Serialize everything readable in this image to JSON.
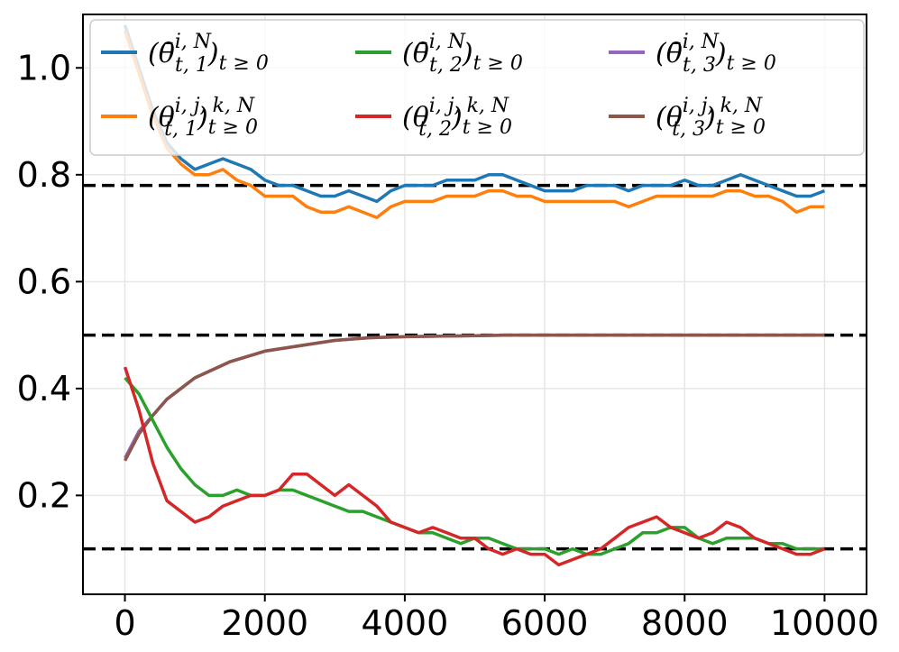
{
  "chart_data": {
    "type": "line",
    "title": "",
    "xlabel": "",
    "ylabel": "",
    "xlim": [
      -600,
      10600
    ],
    "ylim": [
      0.015,
      1.1
    ],
    "grid": true,
    "x_ticks": [
      0,
      2000,
      4000,
      6000,
      8000,
      10000
    ],
    "x_tick_labels": [
      "0",
      "2000",
      "4000",
      "6000",
      "8000",
      "10000"
    ],
    "y_ticks": [
      0.2,
      0.4,
      0.6,
      0.8,
      1.0
    ],
    "y_tick_labels": [
      "0.2",
      "0.4",
      "0.6",
      "0.8",
      "1.0"
    ],
    "reference_lines": [
      0.78,
      0.5,
      0.1
    ],
    "legend_position": "top",
    "legend_columns": 3,
    "series": [
      {
        "name": "theta_bar_t1",
        "label": "(θ̄ᵢ,ᴺ t,1)t≥0",
        "color": "#1f77b4",
        "x": [
          0,
          200,
          400,
          600,
          800,
          1000,
          1200,
          1400,
          1600,
          1800,
          2000,
          2200,
          2400,
          2600,
          2800,
          3000,
          3200,
          3400,
          3600,
          3800,
          4000,
          4200,
          4400,
          4600,
          4800,
          5000,
          5200,
          5400,
          5600,
          5800,
          6000,
          6200,
          6400,
          6600,
          6800,
          7000,
          7200,
          7400,
          7600,
          7800,
          8000,
          8200,
          8400,
          8600,
          8800,
          9000,
          9200,
          9400,
          9600,
          9800,
          10000
        ],
        "y": [
          1.08,
          1.0,
          0.92,
          0.86,
          0.83,
          0.81,
          0.82,
          0.83,
          0.82,
          0.81,
          0.79,
          0.78,
          0.78,
          0.77,
          0.76,
          0.76,
          0.77,
          0.76,
          0.75,
          0.77,
          0.78,
          0.78,
          0.78,
          0.79,
          0.79,
          0.79,
          0.8,
          0.8,
          0.79,
          0.78,
          0.77,
          0.77,
          0.77,
          0.78,
          0.78,
          0.78,
          0.77,
          0.78,
          0.78,
          0.78,
          0.79,
          0.78,
          0.78,
          0.79,
          0.8,
          0.79,
          0.78,
          0.77,
          0.76,
          0.76,
          0.77
        ]
      },
      {
        "name": "theta_ijk_t1",
        "label": "(θᵢ,ⱼ,ₖ,ᴺ t,1)t≥0",
        "color": "#ff7f0e",
        "x": [
          0,
          200,
          400,
          600,
          800,
          1000,
          1200,
          1400,
          1600,
          1800,
          2000,
          2200,
          2400,
          2600,
          2800,
          3000,
          3200,
          3400,
          3600,
          3800,
          4000,
          4200,
          4400,
          4600,
          4800,
          5000,
          5200,
          5400,
          5600,
          5800,
          6000,
          6200,
          6400,
          6600,
          6800,
          7000,
          7200,
          7400,
          7600,
          7800,
          8000,
          8200,
          8400,
          8600,
          8800,
          9000,
          9200,
          9400,
          9600,
          9800,
          10000
        ],
        "y": [
          1.07,
          0.99,
          0.91,
          0.85,
          0.82,
          0.8,
          0.8,
          0.81,
          0.79,
          0.78,
          0.76,
          0.76,
          0.76,
          0.74,
          0.73,
          0.73,
          0.74,
          0.73,
          0.72,
          0.74,
          0.75,
          0.75,
          0.75,
          0.76,
          0.76,
          0.76,
          0.77,
          0.77,
          0.76,
          0.76,
          0.75,
          0.75,
          0.75,
          0.75,
          0.75,
          0.75,
          0.74,
          0.75,
          0.76,
          0.76,
          0.76,
          0.76,
          0.76,
          0.77,
          0.77,
          0.76,
          0.76,
          0.75,
          0.73,
          0.74,
          0.74
        ]
      },
      {
        "name": "theta_bar_t2",
        "label": "(θ̄ᵢ,ᴺ t,2)t≥0",
        "color": "#2ca02c",
        "x": [
          0,
          200,
          400,
          600,
          800,
          1000,
          1200,
          1400,
          1600,
          1800,
          2000,
          2200,
          2400,
          2600,
          2800,
          3000,
          3200,
          3400,
          3600,
          3800,
          4000,
          4200,
          4400,
          4600,
          4800,
          5000,
          5200,
          5400,
          5600,
          5800,
          6000,
          6200,
          6400,
          6600,
          6800,
          7000,
          7200,
          7400,
          7600,
          7800,
          8000,
          8200,
          8400,
          8600,
          8800,
          9000,
          9200,
          9400,
          9600,
          9800,
          10000
        ],
        "y": [
          0.42,
          0.39,
          0.34,
          0.29,
          0.25,
          0.22,
          0.2,
          0.2,
          0.21,
          0.2,
          0.2,
          0.21,
          0.21,
          0.2,
          0.19,
          0.18,
          0.17,
          0.17,
          0.16,
          0.15,
          0.14,
          0.13,
          0.13,
          0.12,
          0.11,
          0.12,
          0.12,
          0.11,
          0.1,
          0.1,
          0.1,
          0.09,
          0.1,
          0.09,
          0.09,
          0.1,
          0.11,
          0.13,
          0.13,
          0.14,
          0.14,
          0.12,
          0.11,
          0.12,
          0.12,
          0.12,
          0.11,
          0.11,
          0.1,
          0.1,
          0.1
        ]
      },
      {
        "name": "theta_ijk_t2",
        "label": "(θᵢ,ⱼ,ₖ,ᴺ t,2)t≥0",
        "color": "#d62728",
        "x": [
          0,
          200,
          400,
          600,
          800,
          1000,
          1200,
          1400,
          1600,
          1800,
          2000,
          2200,
          2400,
          2600,
          2800,
          3000,
          3200,
          3400,
          3600,
          3800,
          4000,
          4200,
          4400,
          4600,
          4800,
          5000,
          5200,
          5400,
          5600,
          5800,
          6000,
          6200,
          6400,
          6600,
          6800,
          7000,
          7200,
          7400,
          7600,
          7800,
          8000,
          8200,
          8400,
          8600,
          8800,
          9000,
          9200,
          9400,
          9600,
          9800,
          10000
        ],
        "y": [
          0.44,
          0.36,
          0.26,
          0.19,
          0.17,
          0.15,
          0.16,
          0.18,
          0.19,
          0.2,
          0.2,
          0.21,
          0.24,
          0.24,
          0.22,
          0.2,
          0.22,
          0.2,
          0.18,
          0.15,
          0.14,
          0.13,
          0.14,
          0.13,
          0.12,
          0.12,
          0.1,
          0.09,
          0.1,
          0.09,
          0.09,
          0.07,
          0.08,
          0.09,
          0.1,
          0.12,
          0.14,
          0.15,
          0.16,
          0.14,
          0.13,
          0.12,
          0.13,
          0.15,
          0.14,
          0.12,
          0.11,
          0.1,
          0.09,
          0.09,
          0.1
        ]
      },
      {
        "name": "theta_bar_t3",
        "label": "(θ̄ᵢ,ᴺ t,3)t≥0",
        "color": "#9467bd",
        "x": [
          0,
          200,
          400,
          600,
          800,
          1000,
          1500,
          2000,
          2500,
          3000,
          3500,
          4000,
          4500,
          5000,
          5500,
          6000,
          7000,
          8000,
          9000,
          10000
        ],
        "y": [
          0.27,
          0.32,
          0.35,
          0.38,
          0.4,
          0.42,
          0.45,
          0.47,
          0.48,
          0.49,
          0.495,
          0.497,
          0.498,
          0.499,
          0.5,
          0.5,
          0.5,
          0.5,
          0.5,
          0.5
        ]
      },
      {
        "name": "theta_ijk_t3",
        "label": "(θᵢ,ⱼ,ₖ,ᴺ t,3)t≥0",
        "color": "#8c564b",
        "x": [
          0,
          200,
          400,
          600,
          800,
          1000,
          1500,
          2000,
          2500,
          3000,
          3500,
          4000,
          4500,
          5000,
          5500,
          6000,
          7000,
          8000,
          9000,
          10000
        ],
        "y": [
          0.265,
          0.315,
          0.35,
          0.38,
          0.4,
          0.42,
          0.45,
          0.47,
          0.48,
          0.49,
          0.495,
          0.497,
          0.498,
          0.499,
          0.5,
          0.5,
          0.5,
          0.5,
          0.5,
          0.5
        ]
      }
    ],
    "legend": [
      {
        "series": "theta_bar_t1",
        "sym": "θ̄",
        "sup": "i, N",
        "sub": "t, 1",
        "tail": "t ≥ 0"
      },
      {
        "series": "theta_bar_t2",
        "sym": "θ̄",
        "sup": "i, N",
        "sub": "t, 2",
        "tail": "t ≥ 0"
      },
      {
        "series": "theta_bar_t3",
        "sym": "θ̄",
        "sup": "i, N",
        "sub": "t, 3",
        "tail": "t ≥ 0"
      },
      {
        "series": "theta_ijk_t1",
        "sym": "θ",
        "sup": "i, j, k, N",
        "sub": "t, 1",
        "tail": "t ≥ 0"
      },
      {
        "series": "theta_ijk_t2",
        "sym": "θ",
        "sup": "i, j, k, N",
        "sub": "t, 2",
        "tail": "t ≥ 0"
      },
      {
        "series": "theta_ijk_t3",
        "sym": "θ",
        "sup": "i, j, k, N",
        "sub": "t, 3",
        "tail": "t ≥ 0"
      }
    ],
    "colors": {
      "reference_line": "#000000",
      "grid": "#e6e6e6",
      "axes": "#000000"
    }
  }
}
